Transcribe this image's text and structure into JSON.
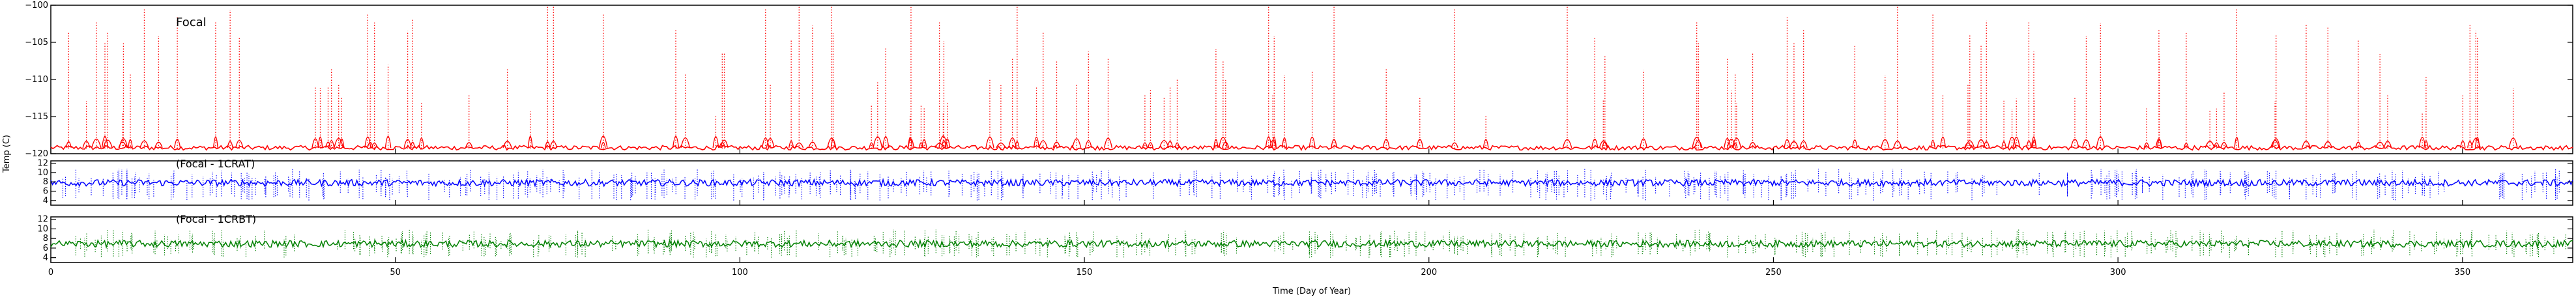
{
  "chart_data": [
    {
      "type": "scatter",
      "title": "Focal",
      "xlabel": "",
      "ylabel": "Temp (C)",
      "xlim": [
        0,
        366
      ],
      "ylim": [
        -120,
        -100
      ],
      "yticks": [
        -120,
        -115,
        -110,
        -105,
        -100
      ],
      "series": [
        {
          "color": "#ff0000",
          "style": "dense red points: baseline near -119 with frequent spikes up to about -100",
          "baseline": -119.2
        }
      ]
    },
    {
      "type": "scatter",
      "title": "(Focal - 1CRAT)",
      "xlabel": "",
      "ylabel": "",
      "xlim": [
        0,
        366
      ],
      "ylim": [
        3,
        12.5
      ],
      "yticks": [
        4,
        6,
        8,
        10,
        12
      ],
      "series": [
        {
          "color": "#0000ff",
          "baseline": 7.8,
          "range": [
            4,
            11
          ]
        }
      ]
    },
    {
      "type": "scatter",
      "title": "(Focal - 1CRBT)",
      "xlabel": "Time (Day of Year)",
      "ylabel": "",
      "xlim": [
        0,
        366
      ],
      "ylim": [
        3,
        12.5
      ],
      "yticks": [
        4,
        6,
        8,
        10,
        12
      ],
      "xticks": [
        0,
        50,
        100,
        150,
        200,
        250,
        300,
        350
      ],
      "series": [
        {
          "color": "#008000",
          "baseline": 6.9,
          "range": [
            4,
            10
          ]
        }
      ]
    }
  ]
}
